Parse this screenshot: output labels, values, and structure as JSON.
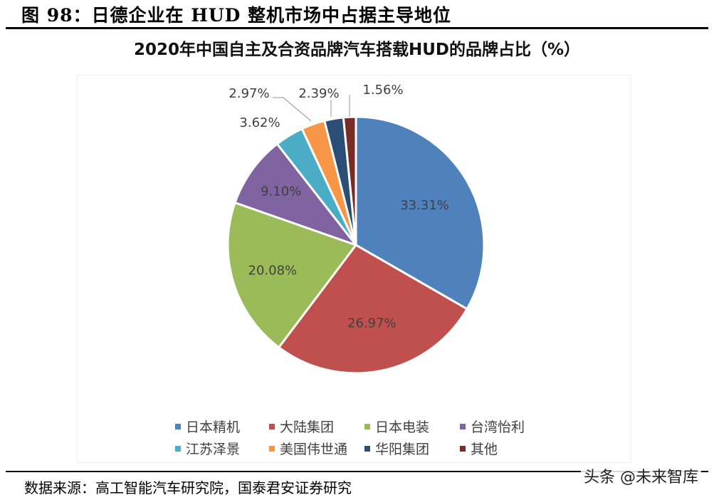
{
  "figure": {
    "title": "图 98：日德企业在 HUD 整机市场中占据主导地位",
    "source": "数据来源：高工智能汽车研究院，国泰君安证券研究",
    "watermark": "头条 @未来智库"
  },
  "chart_data": {
    "type": "pie",
    "title": "2020年中国自主及合资品牌汽车搭载HUD的品牌占比（%）",
    "unit": "%",
    "start_angle": "12 o'clock, clockwise",
    "legend_position": "bottom",
    "categories": [
      "日本精机",
      "大陆集团",
      "日本电装",
      "台湾怡利",
      "江苏泽景",
      "美国伟世通",
      "华阳集团",
      "其他"
    ],
    "values": [
      33.31,
      26.97,
      20.08,
      9.1,
      3.62,
      2.97,
      2.39,
      1.56
    ],
    "labels": [
      "33.31%",
      "26.97%",
      "20.08%",
      "9.10%",
      "3.62%",
      "2.97%",
      "2.39%",
      "1.56%"
    ],
    "colors": [
      "#4f81bd",
      "#c0504d",
      "#9bbb59",
      "#8064a2",
      "#4bacc6",
      "#f79646",
      "#2c4d75",
      "#772c2a"
    ]
  },
  "legend": {
    "rows": [
      [
        {
          "label": "日本精机",
          "color": "#4f81bd"
        },
        {
          "label": "大陆集团",
          "color": "#c0504d"
        },
        {
          "label": "日本电装",
          "color": "#9bbb59"
        },
        {
          "label": "台湾怡利",
          "color": "#8064a2"
        }
      ],
      [
        {
          "label": "江苏泽景",
          "color": "#4bacc6"
        },
        {
          "label": "美国伟世通",
          "color": "#f79646"
        },
        {
          "label": "华阳集团",
          "color": "#2c4d75"
        },
        {
          "label": "其他",
          "color": "#772c2a"
        }
      ]
    ]
  }
}
